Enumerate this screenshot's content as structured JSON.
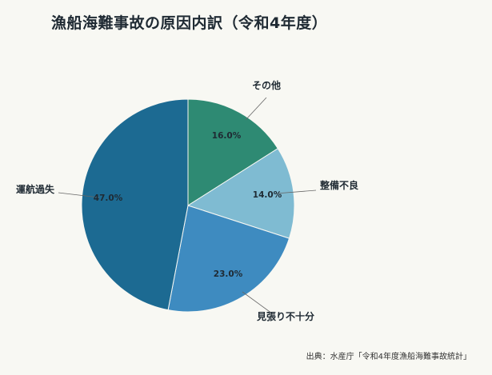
{
  "chart_data": {
    "type": "pie",
    "title": "漁船海難事故の原因内訳（令和4年度）",
    "categories": [
      "その他",
      "整備不良",
      "見張り不十分",
      "運航過失"
    ],
    "values": [
      16.0,
      14.0,
      23.0,
      47.0
    ],
    "value_labels": [
      "16.0%",
      "14.0%",
      "23.0%",
      "47.0%"
    ],
    "colors": [
      "#2e8a73",
      "#7fbbd2",
      "#3e8bc0",
      "#1c6a92"
    ],
    "start_angle_deg": 0,
    "direction": "clockwise",
    "source": "出典：水産庁「令和4年度漁船海難事故統計」"
  }
}
